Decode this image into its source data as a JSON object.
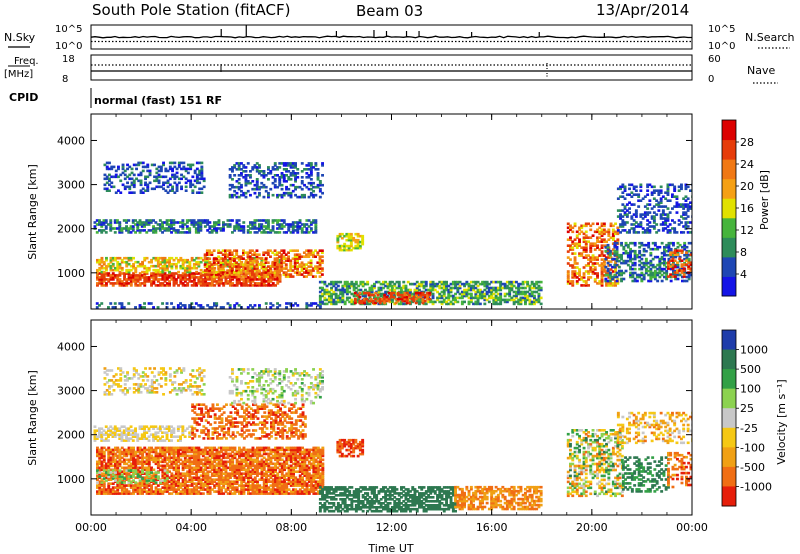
{
  "header": {
    "station": "South Pole Station (fitACF)",
    "beam": "Beam 03",
    "date": "13/Apr/2014"
  },
  "strip": {
    "nsky_label": "N.Sky",
    "nsearch_label": "N.Search",
    "nsky_ticks": [
      "10^5",
      "10^0"
    ],
    "nsearch_ticks": [
      "10^5",
      "10^0"
    ],
    "freq_label_1": "Freq.",
    "freq_label_2": "[MHz]",
    "freq_ticks": [
      "18",
      "8"
    ],
    "nave_label": "Nave",
    "nave_ticks": [
      "60",
      "0"
    ],
    "cpid_label": "CPID",
    "cpid_value": "normal (fast) 151 RF"
  },
  "colors": {
    "power_scale": [
      "#1414e6",
      "#1e46b4",
      "#2d8c5a",
      "#46b43c",
      "#e1e100",
      "#f5a014",
      "#f07814",
      "#e63c0a",
      "#dc0000"
    ],
    "velocity_scale": [
      "#1e3caa",
      "#2d7850",
      "#32a046",
      "#8cd250",
      "#c8c8c8",
      "#f5c814",
      "#f0a014",
      "#f06e14",
      "#e61e0a"
    ]
  },
  "chart_data": [
    {
      "type": "heatmap",
      "ylabel": "Slant Range [km]",
      "xlabel": "",
      "x_ticks": [
        "00:00",
        "04:00",
        "08:00",
        "12:00",
        "16:00",
        "20:00",
        "00:00"
      ],
      "xlim_hours": [
        0,
        24
      ],
      "ylim": [
        180,
        4600
      ],
      "y_ticks": [
        1000,
        2000,
        3000,
        4000
      ],
      "colorbar": {
        "label": "Power [dB]",
        "range": [
          0,
          32
        ],
        "tick_values": [
          4,
          8,
          12,
          16,
          20,
          24,
          28
        ]
      }
    },
    {
      "type": "heatmap",
      "ylabel": "Slant Range [km]",
      "xlabel": "Time UT",
      "x_ticks": [
        "00:00",
        "04:00",
        "08:00",
        "12:00",
        "16:00",
        "20:00",
        "00:00"
      ],
      "xlim_hours": [
        0,
        24
      ],
      "ylim": [
        180,
        4600
      ],
      "y_ticks": [
        1000,
        2000,
        3000,
        4000
      ],
      "colorbar": {
        "label": "Velocity [m s⁻¹]",
        "tick_labels": [
          "1000",
          "500",
          "100",
          "25",
          "-25",
          "-100",
          "-500",
          "-1000"
        ]
      }
    }
  ]
}
